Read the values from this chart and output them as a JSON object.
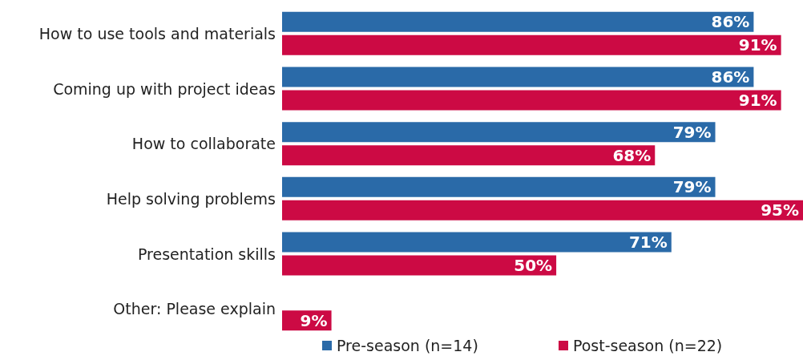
{
  "chart_data": {
    "type": "bar",
    "orientation": "horizontal",
    "categories": [
      "How to use tools and materials",
      "Coming up with project ideas",
      "How to collaborate",
      "Help solving problems",
      "Presentation skills",
      "Other: Please explain"
    ],
    "series": [
      {
        "name": "Pre-season (n=14)",
        "color": "#2a6aa8",
        "values": [
          86,
          86,
          79,
          79,
          71,
          null
        ],
        "value_labels": [
          "86%",
          "86%",
          "79%",
          "79%",
          "71%",
          null
        ]
      },
      {
        "name": "Post-season (n=22)",
        "color": "#cc0a44",
        "values": [
          91,
          91,
          68,
          95,
          50,
          9
        ],
        "value_labels": [
          "91%",
          "91%",
          "68%",
          "95%",
          "50%",
          "9%"
        ]
      }
    ],
    "legend": "bottom",
    "grid": false
  }
}
